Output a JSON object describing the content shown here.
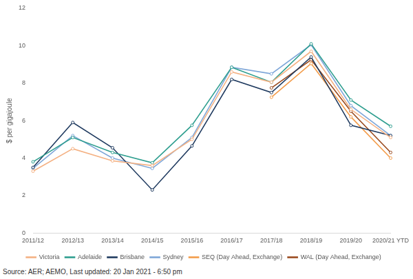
{
  "chart_data": {
    "type": "line",
    "y_label": "$ per gigajoule",
    "source": "Source: AER; AEMO, Last updated: 20 Jan 2021 - 6:50 pm",
    "categories": [
      "2011/12",
      "2012/13",
      "2013/14",
      "2014/15",
      "2015/16",
      "2016/17",
      "2017/18",
      "2018/19",
      "2019/20",
      "2020/21 YTD"
    ],
    "series": [
      {
        "name": "Victoria",
        "color": "#f4b183",
        "marker": "circle",
        "values": [
          3.3,
          4.5,
          3.85,
          3.6,
          5.0,
          8.6,
          8.05,
          9.7,
          6.6,
          5.1
        ]
      },
      {
        "name": "Adelaide",
        "color": "#2e9e8f",
        "marker": "circle",
        "values": [
          3.8,
          5.1,
          4.3,
          3.75,
          5.75,
          8.85,
          8.05,
          10.1,
          7.1,
          5.7
        ]
      },
      {
        "name": "Brisbane",
        "color": "#1f3a5f",
        "marker": "circle",
        "values": [
          3.5,
          5.9,
          4.55,
          2.3,
          4.65,
          8.2,
          7.5,
          9.4,
          5.75,
          5.2
        ]
      },
      {
        "name": "Sydney",
        "color": "#7ea6d8",
        "marker": "circle",
        "values": [
          3.45,
          5.2,
          4.0,
          3.45,
          5.1,
          8.85,
          8.5,
          10.05,
          6.8,
          5.2
        ]
      },
      {
        "name": "SEQ (Day Ahead, Exchange)",
        "color": "#f39c4a",
        "marker": "circle",
        "values": [
          null,
          null,
          null,
          null,
          null,
          null,
          7.25,
          9.05,
          6.2,
          4.0
        ]
      },
      {
        "name": "WAL (Day Ahead, Exchange)",
        "color": "#9a4a1e",
        "marker": "circle",
        "values": [
          null,
          null,
          null,
          null,
          null,
          null,
          7.75,
          9.25,
          6.5,
          4.3
        ]
      }
    ],
    "ylim": [
      0,
      12
    ],
    "yticks": [
      0,
      2,
      4,
      6,
      8,
      10,
      12
    ],
    "grid": false,
    "legend": "bottom"
  }
}
